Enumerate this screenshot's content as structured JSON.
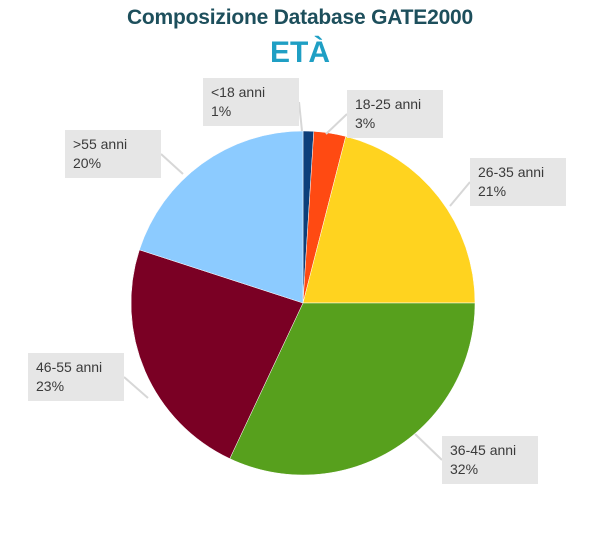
{
  "chart_data": {
    "type": "pie",
    "title": "Composizione Database GATE2000",
    "subtitle": "ETÀ",
    "slices": [
      {
        "label": "<18 anni",
        "value": 1,
        "pct_label": "1%",
        "color": "#0d3f7a"
      },
      {
        "label": "18-25 anni",
        "value": 3,
        "pct_label": "3%",
        "color": "#ff4a12"
      },
      {
        "label": "26-35 anni",
        "value": 21,
        "pct_label": "21%",
        "color": "#ffd31f"
      },
      {
        "label": "36-45 anni",
        "value": 32,
        "pct_label": "32%",
        "color": "#57a01d"
      },
      {
        "label": "46-55 anni",
        "value": 23,
        "pct_label": "23%",
        "color": "#7a0024"
      },
      {
        "label": ">55 anni",
        "value": 20,
        "pct_label": "20%",
        "color": "#8ccbff"
      }
    ],
    "start_angle_deg": 0,
    "direction": "clockwise",
    "label_box_color": "#e6e6e6"
  }
}
